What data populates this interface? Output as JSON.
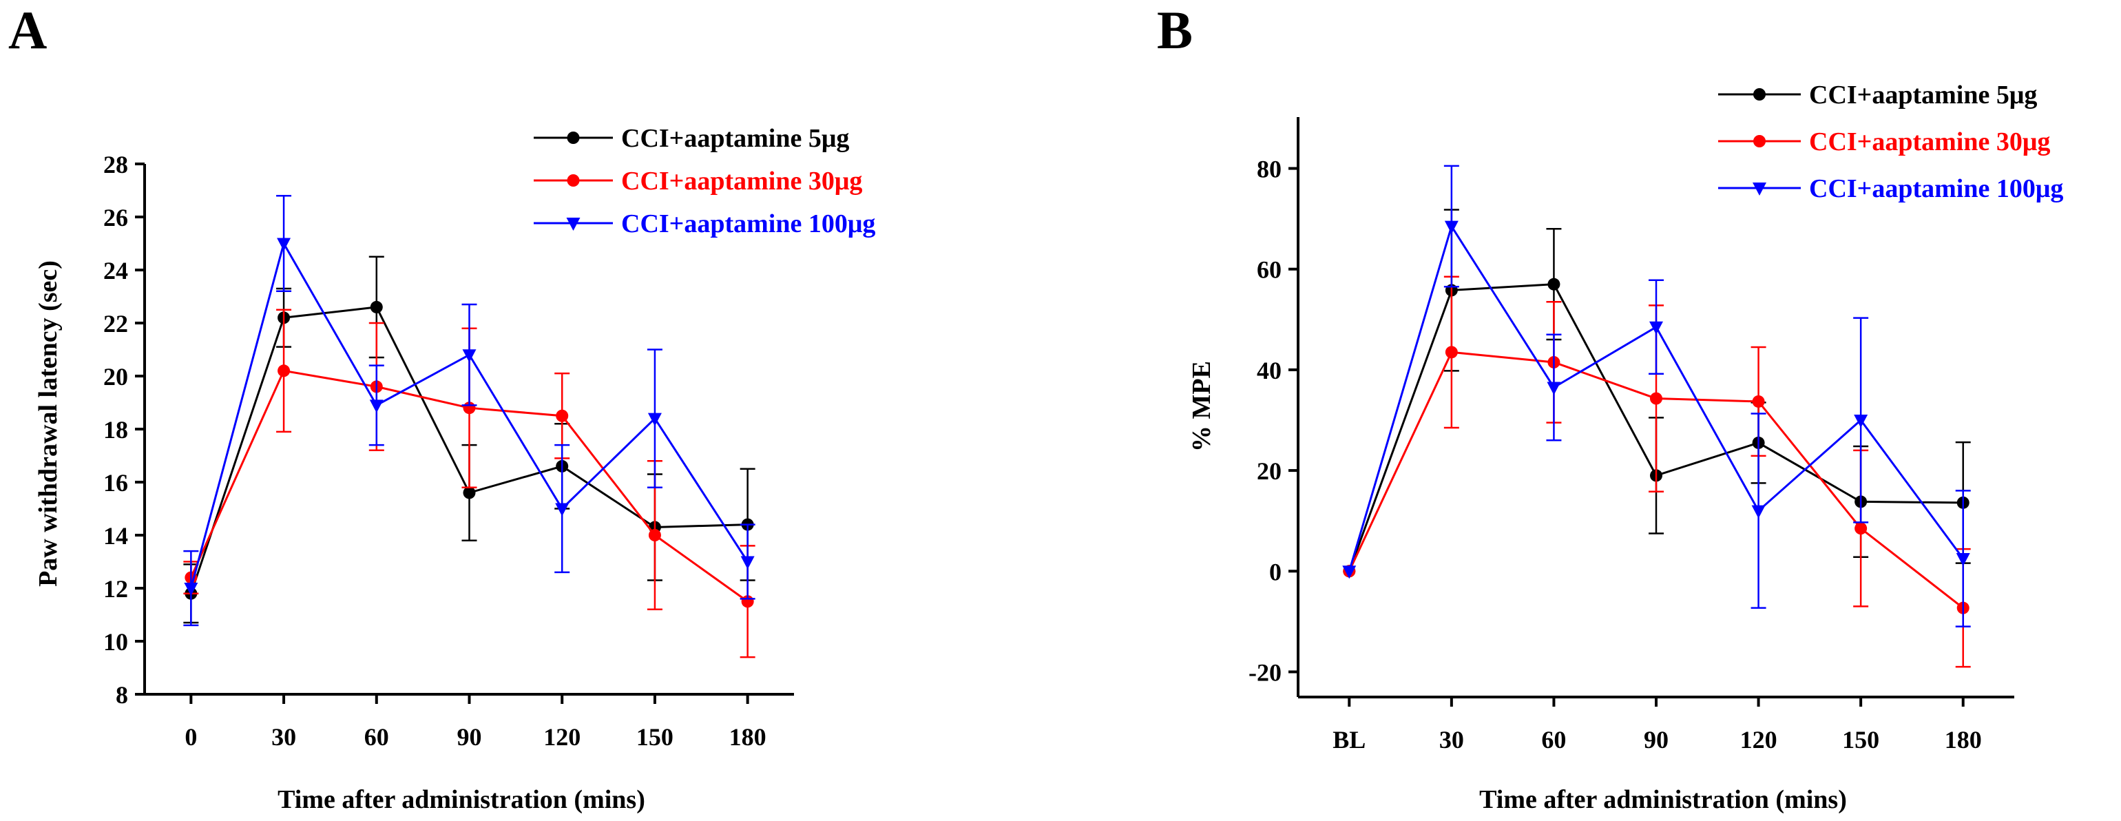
{
  "chart_data": [
    {
      "panel_label": "A",
      "type": "line",
      "title": "",
      "xlabel": "Time after administration (mins)",
      "ylabel": "Paw withdrawal latency (sec)",
      "categories": [
        "0",
        "30",
        "60",
        "90",
        "120",
        "150",
        "180"
      ],
      "x": [
        0,
        30,
        60,
        90,
        120,
        150,
        180
      ],
      "xlim": [
        -15,
        195
      ],
      "ylim": [
        8,
        28
      ],
      "yticks": [
        8,
        10,
        12,
        14,
        16,
        18,
        20,
        22,
        24,
        26,
        28
      ],
      "grid": false,
      "legend_position": "top-right",
      "series": [
        {
          "name": "CCI+aaptamine 5μg",
          "color": "#000000",
          "marker": "circle",
          "values": [
            11.8,
            22.2,
            22.6,
            15.6,
            16.6,
            14.3,
            14.4
          ],
          "errors": [
            1.1,
            1.1,
            1.9,
            1.8,
            1.6,
            2.0,
            2.1
          ]
        },
        {
          "name": "CCI+aaptamine 30μg",
          "color": "#ff0000",
          "marker": "circle",
          "values": [
            12.4,
            20.2,
            19.6,
            18.8,
            18.5,
            14.0,
            11.5
          ],
          "errors": [
            0.6,
            2.3,
            2.4,
            3.0,
            1.6,
            2.8,
            2.1
          ]
        },
        {
          "name": "CCI+aaptamine 100μg",
          "color": "#0000ff",
          "marker": "triangle-down",
          "values": [
            12.0,
            25.0,
            18.9,
            20.8,
            15.0,
            18.4,
            13.0
          ],
          "errors": [
            1.4,
            1.8,
            1.5,
            1.9,
            2.4,
            2.6,
            1.4
          ]
        }
      ]
    },
    {
      "panel_label": "B",
      "type": "line",
      "title": "",
      "xlabel": "Time after administration (mins)",
      "ylabel": "% MPE",
      "categories": [
        "BL",
        "30",
        "60",
        "90",
        "120",
        "150",
        "180"
      ],
      "x": [
        0,
        30,
        60,
        90,
        120,
        150,
        180
      ],
      "xlim": [
        -15,
        195
      ],
      "ylim": [
        -25,
        85
      ],
      "yticks": [
        -20,
        0,
        20,
        40,
        60,
        80
      ],
      "grid": false,
      "legend_position": "top-right",
      "series": [
        {
          "name": "CCI+aaptamine 5μg",
          "color": "#000000",
          "marker": "circle",
          "values": [
            0,
            55.8,
            57.0,
            19.0,
            25.5,
            13.8,
            13.6
          ],
          "errors": [
            0,
            16,
            11,
            11.5,
            8,
            11,
            12
          ]
        },
        {
          "name": "CCI+aaptamine 30μg",
          "color": "#ff0000",
          "marker": "circle",
          "values": [
            0,
            43.5,
            41.5,
            34.3,
            33.7,
            8.5,
            -7.3
          ],
          "errors": [
            0,
            15,
            12,
            18.5,
            10.8,
            15.5,
            11.7
          ]
        },
        {
          "name": "CCI+aaptamine 100μg",
          "color": "#0000ff",
          "marker": "triangle-down",
          "values": [
            0,
            68.5,
            36.5,
            48.5,
            12.0,
            30.0,
            2.5
          ],
          "errors": [
            0,
            12,
            10.5,
            9.3,
            19.3,
            20.3,
            13.5
          ]
        }
      ]
    }
  ]
}
